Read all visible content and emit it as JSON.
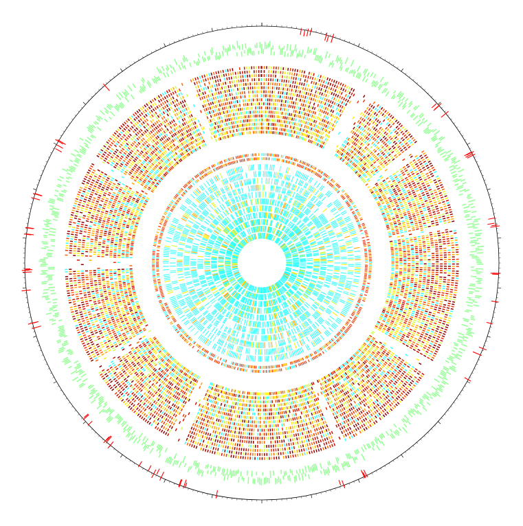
{
  "figure": {
    "type": "circular-genome-map",
    "background": "#ffffff",
    "tracks": [
      {
        "id": "ideogram-scale",
        "kind": "axis-with-ticks",
        "color": "#000000"
      },
      {
        "id": "outer-markers",
        "kind": "feature-marks",
        "color": "#ff0000",
        "count": 70
      },
      {
        "id": "gene-band",
        "kind": "gene-blocks",
        "color": "#99ff99"
      },
      {
        "id": "similarity-rings",
        "kind": "heatmap-rings",
        "ring_count": 17,
        "palette": [
          "#8b0000",
          "#cc1100",
          "#ee3300",
          "#ff6600",
          "#ffaa00",
          "#ffee00",
          "#ccff44",
          "#33ffff"
        ]
      },
      {
        "id": "inner-similarity-rings",
        "kind": "heatmap-rings",
        "ring_count": 11,
        "palette": [
          "#33ffff",
          "#66ffee",
          "#ccff44",
          "#ffee00",
          "#ffaa00",
          "#ee3300"
        ]
      }
    ],
    "gap_regions": [
      {
        "start_deg": 28,
        "end_deg": 34
      },
      {
        "start_deg": 52,
        "end_deg": 56
      },
      {
        "start_deg": 78,
        "end_deg": 80
      },
      {
        "start_deg": 120,
        "end_deg": 124
      },
      {
        "start_deg": 155,
        "end_deg": 158
      },
      {
        "start_deg": 203,
        "end_deg": 208
      },
      {
        "start_deg": 236,
        "end_deg": 240
      },
      {
        "start_deg": 268,
        "end_deg": 272
      },
      {
        "start_deg": 300,
        "end_deg": 303
      },
      {
        "start_deg": 335,
        "end_deg": 339
      }
    ],
    "tick_labels": [
      "",
      "",
      "",
      "",
      "",
      ""
    ]
  }
}
